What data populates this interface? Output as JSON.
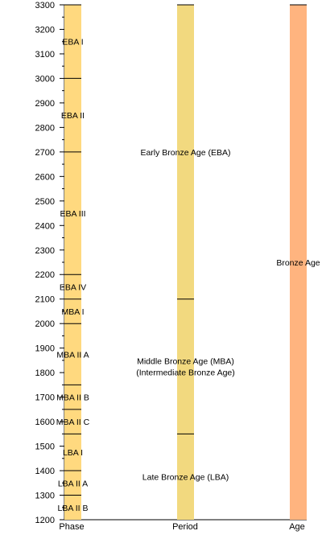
{
  "chart_data": {
    "type": "timeline",
    "title": "",
    "y_axis": {
      "min": 1200,
      "max": 3300,
      "step": 100,
      "ticks": [
        3300,
        3200,
        3100,
        3000,
        2900,
        2800,
        2700,
        2600,
        2500,
        2400,
        2300,
        2200,
        2100,
        2000,
        1900,
        1800,
        1700,
        1600,
        1500,
        1400,
        1300,
        1200
      ],
      "tick_labels": [
        "3300",
        "3200",
        "3100",
        "3000",
        "2900",
        "2800",
        "2700",
        "2600",
        "2500",
        "2400",
        "2300",
        "2200",
        "2100",
        "2000",
        "1900",
        "1800",
        "1700",
        "1600",
        "1500",
        "1400",
        "1300",
        "1200"
      ]
    },
    "columns": [
      {
        "name": "Phase",
        "color": "#ffd97f",
        "segments": [
          {
            "label": "EBA I",
            "start": 3300,
            "end": 3000
          },
          {
            "label": "EBA II",
            "start": 3000,
            "end": 2700
          },
          {
            "label": "EBA III",
            "start": 2700,
            "end": 2200
          },
          {
            "label": "EBA IV",
            "start": 2200,
            "end": 2100
          },
          {
            "label": "MBA I",
            "start": 2100,
            "end": 2000
          },
          {
            "label": "MBA II A",
            "start": 2000,
            "end": 1750
          },
          {
            "label": "MBA II B",
            "start": 1750,
            "end": 1650
          },
          {
            "label": "MBA II C",
            "start": 1650,
            "end": 1550
          },
          {
            "label": "LBA I",
            "start": 1550,
            "end": 1400
          },
          {
            "label": "LBA II A",
            "start": 1400,
            "end": 1300
          },
          {
            "label": "LBA II B",
            "start": 1300,
            "end": 1200
          }
        ]
      },
      {
        "name": "Period",
        "color": "#f2d97f",
        "segments": [
          {
            "label": "Early Bronze Age (EBA)",
            "start": 3300,
            "end": 2100
          },
          {
            "label": "Middle Bronze Age (MBA)\n(Intermediate Bronze Age)",
            "start": 2100,
            "end": 1550
          },
          {
            "label": "Late Bronze Age (LBA)",
            "start": 1550,
            "end": 1200
          }
        ]
      },
      {
        "name": "Age",
        "color": "#ffb47f",
        "segments": [
          {
            "label": "Bronze Age",
            "start": 3300,
            "end": 1200
          }
        ]
      }
    ]
  }
}
